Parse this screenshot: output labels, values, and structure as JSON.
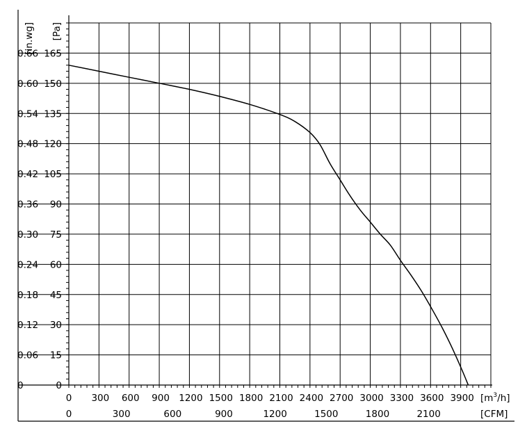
{
  "chart_data": {
    "type": "line",
    "title": "",
    "x_primary": {
      "unit_label": "[m³/h]",
      "unit_prefix": "[m",
      "unit_sup": "3",
      "unit_suffix": "/h]",
      "range": [
        0,
        4200
      ],
      "ticks": [
        0,
        300,
        600,
        900,
        1200,
        1500,
        1800,
        2100,
        2400,
        2700,
        3000,
        3300,
        3600,
        3900
      ],
      "tick_labels": [
        "0",
        "300",
        "600",
        "900",
        "1200",
        "1500",
        "1800",
        "2100",
        "2400",
        "2700",
        "3000",
        "3300",
        "3600",
        "3900"
      ]
    },
    "x_secondary": {
      "unit_label": "[CFM]",
      "ticks": [
        0,
        300,
        600,
        900,
        1200,
        1500,
        1800,
        2100
      ],
      "tick_labels": [
        "0",
        "300",
        "600",
        "900",
        "1200",
        "1500",
        "1800",
        "2100"
      ]
    },
    "y_primary": {
      "unit_label": "[Pa]",
      "range": [
        0,
        180
      ],
      "ticks": [
        0,
        15,
        30,
        45,
        60,
        75,
        90,
        105,
        120,
        135,
        150,
        165
      ],
      "tick_labels": [
        "0",
        "15",
        "30",
        "45",
        "60",
        "75",
        "90",
        "105",
        "120",
        "135",
        "150",
        "165"
      ]
    },
    "y_secondary": {
      "unit_label": "[in.wg]",
      "tick_labels": [
        "0",
        "0.06",
        "0.12",
        "0.18",
        "0.24",
        "0.30",
        "0.36",
        "0.42",
        "0.48",
        "0.54",
        "0.60",
        "0.66"
      ]
    },
    "grid": true,
    "series": [
      {
        "x": [
          0,
          300,
          600,
          900,
          1200,
          1500,
          1800,
          2100,
          2250,
          2400,
          2500,
          2600,
          2700,
          2800,
          2900,
          3000,
          3100,
          3200,
          3300,
          3400,
          3500,
          3600,
          3700,
          3800,
          3900,
          3975
        ],
        "y": [
          159,
          156,
          153,
          150,
          147,
          143.5,
          139.5,
          134.5,
          131,
          125.5,
          119.5,
          110,
          102,
          94,
          87,
          81,
          75,
          69.5,
          62,
          55,
          47.5,
          39,
          30,
          20,
          9,
          0
        ]
      }
    ]
  }
}
